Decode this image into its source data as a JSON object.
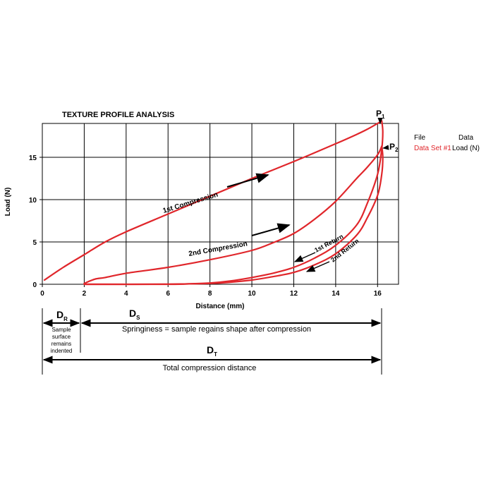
{
  "chart_data": {
    "type": "line",
    "title": "TEXTURE PROFILE ANALYSIS",
    "xlabel": "Distance (mm)",
    "ylabel": "Load (N)",
    "xlim": [
      0,
      17
    ],
    "ylim": [
      0,
      19
    ],
    "x_ticks": [
      0,
      2,
      4,
      6,
      8,
      10,
      12,
      14,
      16
    ],
    "y_ticks": [
      0,
      5,
      10,
      15
    ],
    "x_grid": [
      0,
      2,
      4,
      6,
      8,
      10,
      12,
      14,
      16
    ],
    "y_grid": [
      5,
      10,
      15
    ],
    "grid": true,
    "color": "#e0262b",
    "legend": {
      "position": "right",
      "file_header": "File",
      "data_header": "Data",
      "file_value": "Data Set #1",
      "data_value": "Load (N)"
    },
    "series": [
      {
        "name": "1st Compression",
        "x": [
          0.1,
          1,
          2,
          3,
          4,
          6,
          8,
          10,
          12,
          14,
          15,
          15.5,
          16.0,
          16.2
        ],
        "y": [
          0.5,
          2.0,
          3.5,
          5.0,
          6.2,
          8.3,
          10.4,
          12.5,
          14.5,
          16.6,
          17.7,
          18.3,
          19.0,
          19.3
        ]
      },
      {
        "name": "1st Return",
        "x": [
          16.2,
          16.25,
          16.2,
          16.0,
          15.5,
          15.0,
          14.0,
          13.0,
          12.0,
          11.0,
          10.0,
          9.0,
          8.0,
          7.0,
          6.0,
          2.0
        ],
        "y": [
          19.3,
          18.0,
          16.0,
          13.0,
          9.5,
          7.0,
          4.6,
          3.1,
          2.0,
          1.3,
          0.8,
          0.4,
          0.15,
          0.05,
          0.0,
          0.0
        ]
      },
      {
        "name": "2nd Compression",
        "x": [
          2.0,
          2.5,
          3,
          4,
          6,
          8,
          10,
          11,
          12,
          13,
          14,
          15,
          15.5,
          16.0,
          16.2
        ],
        "y": [
          0.1,
          0.6,
          0.8,
          1.3,
          2.0,
          2.9,
          4.0,
          4.9,
          6.0,
          7.7,
          9.8,
          12.5,
          13.8,
          15.3,
          16.3
        ]
      },
      {
        "name": "2nd Return",
        "x": [
          16.2,
          16.25,
          16.2,
          16.0,
          15.5,
          15.0,
          14.0,
          13.0,
          12.0,
          11.0,
          10.0,
          9.0,
          8.0,
          6.0,
          4.0,
          2.0
        ],
        "y": [
          16.3,
          15.0,
          13.0,
          10.5,
          7.8,
          5.8,
          3.6,
          2.3,
          1.4,
          0.9,
          0.5,
          0.25,
          0.1,
          0.02,
          0.0,
          0.0
        ]
      }
    ],
    "annotations": {
      "first_compression": "1st Compression",
      "second_compression": "2nd Compression",
      "first_return": "1st Return",
      "second_return": "2nd Return",
      "p1": "P",
      "p1_sub": "1",
      "p2": "P",
      "p2_sub": "2"
    }
  },
  "dimensions": {
    "dr_label": "D",
    "dr_sub": "R",
    "dr_caption": [
      "Sample",
      "surface",
      "remains",
      "indented"
    ],
    "ds_label": "D",
    "ds_sub": "S",
    "ds_caption": "Springiness = sample regains shape after compression",
    "dt_label": "D",
    "dt_sub": "T",
    "dt_caption": "Total compression distance"
  }
}
